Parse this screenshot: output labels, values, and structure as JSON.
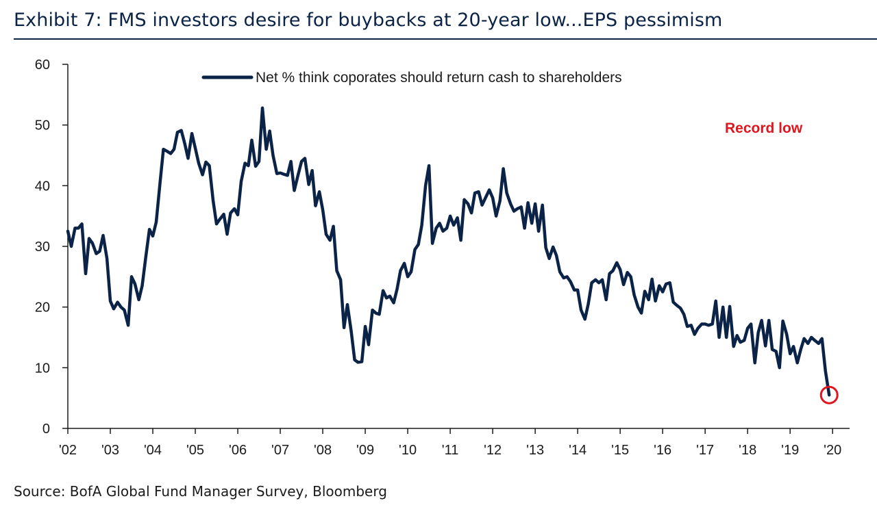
{
  "title": "Exhibit 7: FMS investors desire for buybacks at 20-year low...EPS pessimism",
  "source": "Source: BofA Global Fund Manager Survey, Bloomberg",
  "colors": {
    "series": "#0b2346",
    "accent": "#e0161e",
    "axis": "#1a1a1a"
  },
  "chart_data": {
    "type": "line",
    "title": "Exhibit 7: FMS investors desire for buybacks at 20-year low...EPS pessimism",
    "xlabel": "",
    "ylabel": "",
    "xlim": [
      2002,
      2020.4
    ],
    "ylim": [
      0,
      60
    ],
    "yticks": [
      0,
      10,
      20,
      30,
      40,
      50,
      60
    ],
    "xticks": [
      {
        "value": 2002,
        "label": "'02"
      },
      {
        "value": 2003,
        "label": "'03"
      },
      {
        "value": 2004,
        "label": "'04"
      },
      {
        "value": 2005,
        "label": "'05"
      },
      {
        "value": 2006,
        "label": "'06"
      },
      {
        "value": 2007,
        "label": "'07"
      },
      {
        "value": 2008,
        "label": "'08"
      },
      {
        "value": 2009,
        "label": "'09"
      },
      {
        "value": 2010,
        "label": "'10"
      },
      {
        "value": 2011,
        "label": "'11"
      },
      {
        "value": 2012,
        "label": "'12"
      },
      {
        "value": 2013,
        "label": "'13"
      },
      {
        "value": 2014,
        "label": "'14"
      },
      {
        "value": 2015,
        "label": "'15"
      },
      {
        "value": 2016,
        "label": "'16"
      },
      {
        "value": 2017,
        "label": "'17"
      },
      {
        "value": 2018,
        "label": "'18"
      },
      {
        "value": 2019,
        "label": "'19"
      },
      {
        "value": 2020,
        "label": "'20"
      }
    ],
    "grid": false,
    "legend": "top-center",
    "series": [
      {
        "name": "Net % think coporates should return cash to shareholders",
        "color": "#0b2346",
        "points": [
          [
            2002.0,
            32.5
          ],
          [
            2002.08,
            30.0
          ],
          [
            2002.17,
            33.0
          ],
          [
            2002.25,
            33.0
          ],
          [
            2002.33,
            33.7
          ],
          [
            2002.42,
            25.5
          ],
          [
            2002.5,
            31.3
          ],
          [
            2002.58,
            30.5
          ],
          [
            2002.67,
            28.8
          ],
          [
            2002.75,
            29.2
          ],
          [
            2002.83,
            31.8
          ],
          [
            2002.92,
            28.0
          ],
          [
            2003.0,
            21.0
          ],
          [
            2003.08,
            19.7
          ],
          [
            2003.17,
            20.8
          ],
          [
            2003.25,
            20.0
          ],
          [
            2003.33,
            19.5
          ],
          [
            2003.42,
            17.0
          ],
          [
            2003.5,
            25.0
          ],
          [
            2003.58,
            23.8
          ],
          [
            2003.67,
            21.2
          ],
          [
            2003.75,
            23.5
          ],
          [
            2003.83,
            28.0
          ],
          [
            2003.92,
            32.8
          ],
          [
            2004.0,
            31.7
          ],
          [
            2004.08,
            34.0
          ],
          [
            2004.17,
            40.5
          ],
          [
            2004.25,
            46.0
          ],
          [
            2004.33,
            45.7
          ],
          [
            2004.42,
            45.3
          ],
          [
            2004.5,
            46.0
          ],
          [
            2004.58,
            48.8
          ],
          [
            2004.67,
            49.1
          ],
          [
            2004.75,
            47.0
          ],
          [
            2004.83,
            44.5
          ],
          [
            2004.92,
            48.6
          ],
          [
            2005.0,
            46.2
          ],
          [
            2005.08,
            43.7
          ],
          [
            2005.17,
            41.8
          ],
          [
            2005.25,
            43.9
          ],
          [
            2005.33,
            43.3
          ],
          [
            2005.42,
            37.5
          ],
          [
            2005.5,
            33.7
          ],
          [
            2005.58,
            34.5
          ],
          [
            2005.67,
            35.3
          ],
          [
            2005.75,
            32.0
          ],
          [
            2005.83,
            35.5
          ],
          [
            2005.92,
            36.2
          ],
          [
            2006.0,
            35.2
          ],
          [
            2006.08,
            40.7
          ],
          [
            2006.17,
            43.7
          ],
          [
            2006.25,
            43.3
          ],
          [
            2006.33,
            47.5
          ],
          [
            2006.42,
            43.2
          ],
          [
            2006.5,
            44.0
          ],
          [
            2006.58,
            52.8
          ],
          [
            2006.67,
            46.0
          ],
          [
            2006.75,
            49.0
          ],
          [
            2006.83,
            45.0
          ],
          [
            2006.92,
            42.0
          ],
          [
            2007.0,
            42.1
          ],
          [
            2007.08,
            41.9
          ],
          [
            2007.17,
            41.7
          ],
          [
            2007.25,
            44.0
          ],
          [
            2007.33,
            39.2
          ],
          [
            2007.42,
            41.8
          ],
          [
            2007.5,
            44.0
          ],
          [
            2007.58,
            44.5
          ],
          [
            2007.67,
            40.2
          ],
          [
            2007.75,
            42.5
          ],
          [
            2007.83,
            36.7
          ],
          [
            2007.92,
            39.0
          ],
          [
            2008.0,
            36.0
          ],
          [
            2008.08,
            32.0
          ],
          [
            2008.17,
            31.0
          ],
          [
            2008.25,
            33.3
          ],
          [
            2008.33,
            26.0
          ],
          [
            2008.42,
            24.5
          ],
          [
            2008.5,
            16.6
          ],
          [
            2008.58,
            20.4
          ],
          [
            2008.67,
            16.0
          ],
          [
            2008.75,
            11.3
          ],
          [
            2008.83,
            10.9
          ],
          [
            2008.92,
            11.0
          ],
          [
            2009.0,
            16.8
          ],
          [
            2009.08,
            13.8
          ],
          [
            2009.17,
            19.5
          ],
          [
            2009.25,
            19.0
          ],
          [
            2009.33,
            18.8
          ],
          [
            2009.42,
            22.7
          ],
          [
            2009.5,
            21.5
          ],
          [
            2009.58,
            21.8
          ],
          [
            2009.67,
            20.7
          ],
          [
            2009.75,
            23.0
          ],
          [
            2009.83,
            26.0
          ],
          [
            2009.92,
            27.2
          ],
          [
            2010.0,
            25.0
          ],
          [
            2010.08,
            25.8
          ],
          [
            2010.17,
            29.5
          ],
          [
            2010.25,
            30.3
          ],
          [
            2010.33,
            33.5
          ],
          [
            2010.42,
            40.0
          ],
          [
            2010.5,
            43.3
          ],
          [
            2010.58,
            30.5
          ],
          [
            2010.67,
            33.0
          ],
          [
            2010.75,
            33.8
          ],
          [
            2010.83,
            32.5
          ],
          [
            2010.92,
            33.0
          ],
          [
            2011.0,
            35.0
          ],
          [
            2011.08,
            33.5
          ],
          [
            2011.17,
            34.7
          ],
          [
            2011.25,
            31.0
          ],
          [
            2011.33,
            37.7
          ],
          [
            2011.42,
            37.0
          ],
          [
            2011.5,
            35.5
          ],
          [
            2011.58,
            38.8
          ],
          [
            2011.67,
            39.0
          ],
          [
            2011.75,
            36.8
          ],
          [
            2011.83,
            38.0
          ],
          [
            2011.92,
            39.3
          ],
          [
            2012.0,
            38.0
          ],
          [
            2012.08,
            35.0
          ],
          [
            2012.17,
            37.5
          ],
          [
            2012.25,
            42.8
          ],
          [
            2012.33,
            38.8
          ],
          [
            2012.42,
            37.0
          ],
          [
            2012.5,
            35.8
          ],
          [
            2012.58,
            36.2
          ],
          [
            2012.67,
            36.5
          ],
          [
            2012.75,
            33.0
          ],
          [
            2012.83,
            37.2
          ],
          [
            2012.92,
            33.8
          ],
          [
            2013.0,
            37.0
          ],
          [
            2013.08,
            32.5
          ],
          [
            2013.17,
            36.8
          ],
          [
            2013.25,
            29.8
          ],
          [
            2013.33,
            28.0
          ],
          [
            2013.42,
            29.9
          ],
          [
            2013.5,
            28.5
          ],
          [
            2013.58,
            25.8
          ],
          [
            2013.67,
            24.8
          ],
          [
            2013.75,
            25.0
          ],
          [
            2013.83,
            24.2
          ],
          [
            2013.92,
            22.8
          ],
          [
            2014.0,
            22.8
          ],
          [
            2014.08,
            19.5
          ],
          [
            2014.17,
            18.0
          ],
          [
            2014.25,
            20.5
          ],
          [
            2014.33,
            24.0
          ],
          [
            2014.42,
            24.5
          ],
          [
            2014.5,
            24.0
          ],
          [
            2014.58,
            24.5
          ],
          [
            2014.67,
            21.2
          ],
          [
            2014.75,
            25.5
          ],
          [
            2014.83,
            26.0
          ],
          [
            2014.92,
            27.3
          ],
          [
            2015.0,
            26.2
          ],
          [
            2015.08,
            23.7
          ],
          [
            2015.17,
            25.7
          ],
          [
            2015.25,
            25.0
          ],
          [
            2015.33,
            22.0
          ],
          [
            2015.42,
            20.0
          ],
          [
            2015.5,
            19.0
          ],
          [
            2015.58,
            22.6
          ],
          [
            2015.67,
            21.2
          ],
          [
            2015.75,
            24.6
          ],
          [
            2015.83,
            21.0
          ],
          [
            2015.92,
            23.5
          ],
          [
            2016.0,
            22.5
          ],
          [
            2016.08,
            23.8
          ],
          [
            2016.17,
            24.0
          ],
          [
            2016.25,
            20.8
          ],
          [
            2016.33,
            20.3
          ],
          [
            2016.42,
            19.8
          ],
          [
            2016.5,
            18.8
          ],
          [
            2016.58,
            16.8
          ],
          [
            2016.67,
            17.0
          ],
          [
            2016.75,
            15.5
          ],
          [
            2016.83,
            16.5
          ],
          [
            2016.92,
            17.2
          ],
          [
            2017.0,
            17.2
          ],
          [
            2017.08,
            17.0
          ],
          [
            2017.17,
            17.2
          ],
          [
            2017.25,
            21.0
          ],
          [
            2017.33,
            15.0
          ],
          [
            2017.42,
            20.0
          ],
          [
            2017.5,
            15.0
          ],
          [
            2017.58,
            20.1
          ],
          [
            2017.67,
            13.5
          ],
          [
            2017.75,
            15.3
          ],
          [
            2017.83,
            14.2
          ],
          [
            2017.92,
            14.5
          ],
          [
            2018.0,
            16.5
          ],
          [
            2018.08,
            17.2
          ],
          [
            2018.17,
            10.8
          ],
          [
            2018.25,
            15.8
          ],
          [
            2018.33,
            17.8
          ],
          [
            2018.42,
            13.6
          ],
          [
            2018.5,
            17.8
          ],
          [
            2018.58,
            13.0
          ],
          [
            2018.67,
            12.7
          ],
          [
            2018.75,
            10.0
          ],
          [
            2018.83,
            17.7
          ],
          [
            2018.92,
            15.5
          ],
          [
            2019.0,
            12.3
          ],
          [
            2019.08,
            13.5
          ],
          [
            2019.17,
            10.8
          ],
          [
            2019.25,
            13.0
          ],
          [
            2019.33,
            14.8
          ],
          [
            2019.42,
            14.0
          ],
          [
            2019.5,
            15.0
          ],
          [
            2019.58,
            14.5
          ],
          [
            2019.67,
            14.0
          ],
          [
            2019.75,
            14.8
          ],
          [
            2019.83,
            9.5
          ],
          [
            2019.92,
            5.5
          ]
        ]
      }
    ],
    "annotations": [
      {
        "text": "Record low",
        "color": "#e0161e",
        "x": 2019.92,
        "y": 5.5,
        "marker": "circle"
      }
    ]
  }
}
